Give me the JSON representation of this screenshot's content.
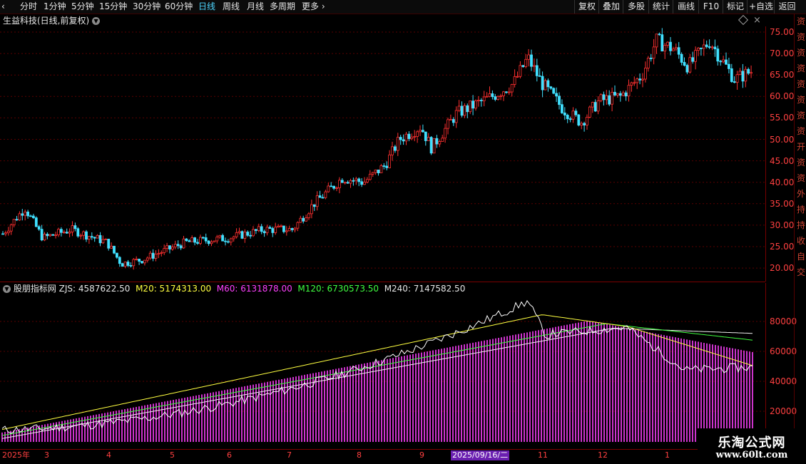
{
  "toolbar": {
    "left_items": [
      "分时",
      "1分钟",
      "5分钟",
      "15分钟",
      "30分钟",
      "60分钟",
      "日线",
      "周线",
      "月线",
      "多周期",
      "更多"
    ],
    "active": "日线",
    "right_items": [
      "复权",
      "叠加",
      "多股",
      "统计",
      "画线",
      "F10",
      "标记",
      "+自选",
      "返回"
    ]
  },
  "title": {
    "name": "生益科技(日线,前复权)"
  },
  "price_axis": [
    "75.00",
    "70.00",
    "65.00",
    "60.00",
    "55.00",
    "50.00",
    "45.00",
    "40.00",
    "35.00",
    "30.00",
    "25.00",
    "20.00"
  ],
  "indicator": {
    "name": "股朋指标网",
    "zjs_label": "ZJS: 4587622.50",
    "m20_label": "M20: 5174313.00",
    "m60_label": "M60: 6131878.00",
    "m120_label": "M120: 6730573.50",
    "m240_label": "M240: 7147582.50",
    "axis": [
      "80000",
      "60000",
      "40000",
      "20000"
    ],
    "colors": {
      "zjs": "#ffffff",
      "m20": "#ffff40",
      "m60": "#ff40ff",
      "m120": "#40ff40",
      "m240": "#ffffff"
    }
  },
  "dates": {
    "year_label": "2025年",
    "months": [
      "3",
      "4",
      "5",
      "6",
      "7",
      "8",
      "9",
      "11",
      "12",
      "1"
    ],
    "selected": "2025/09/16/二"
  },
  "side_panel": [
    "资",
    "资",
    "资",
    "资",
    "资",
    "资",
    "资",
    "资",
    "开",
    "资",
    "资",
    "外",
    "持",
    "持",
    "收",
    "自",
    "交"
  ],
  "watermark": {
    "site": "乐淘公式网",
    "url": "www.60lt.com"
  },
  "colors": {
    "up": "#ff3030",
    "down": "#40e0ff",
    "axis": "#ff4040",
    "grid": "#5a0000",
    "bars": "#cc33cc"
  }
}
